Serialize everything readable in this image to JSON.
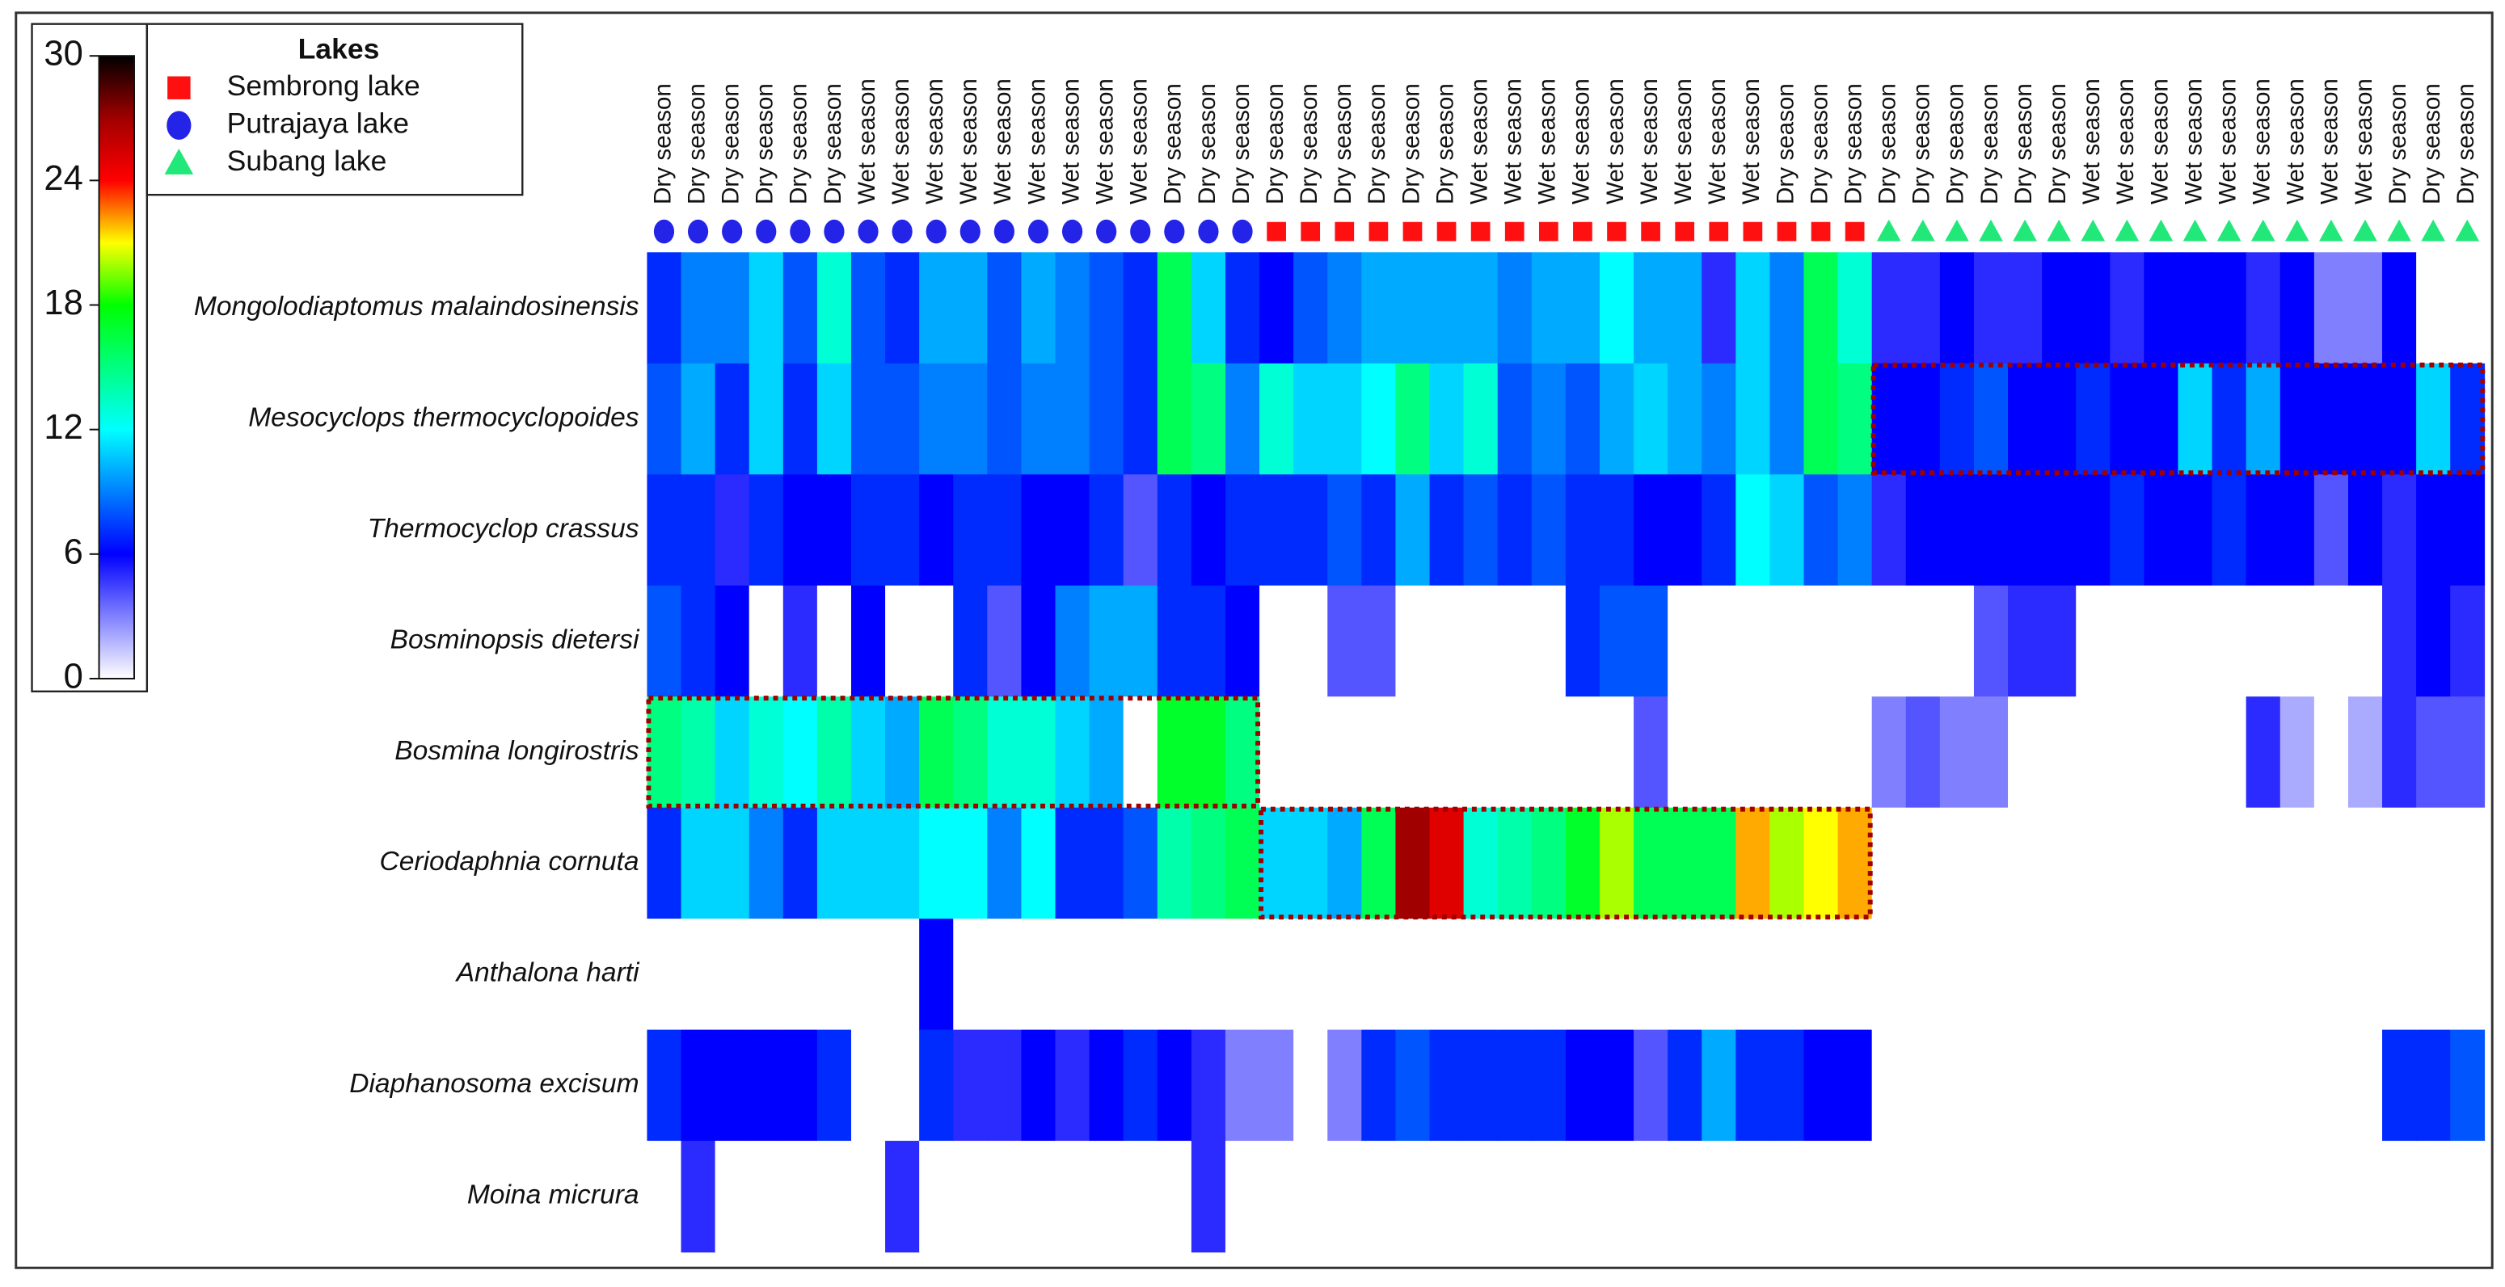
{
  "chart_data": {
    "type": "heatmap",
    "y_categories": [
      "Mongolodiaptomus malaindosinensis",
      "Mesocyclops thermocyclopoides",
      "Thermocyclop crassus",
      "Bosminopsis dietersi",
      "Bosmina longirostris",
      "Ceriodaphnia cornuta",
      "Anthalona harti",
      "Diaphanosoma excisum",
      "Moina micrura"
    ],
    "legend": {
      "title": "Lakes"
    },
    "groups": [
      {
        "name": "Putrajaya lake",
        "color": "#2424e8",
        "marker": "circle",
        "columns": [
          "Dry season",
          "Dry season",
          "Dry season",
          "Dry season",
          "Dry season",
          "Dry season",
          "Wet season",
          "Wet season",
          "Wet season",
          "Wet season",
          "Wet season",
          "Wet season",
          "Wet season",
          "Wet season",
          "Wet season",
          "Dry season",
          "Dry season",
          "Dry season"
        ],
        "values": [
          [
            7,
            9,
            9,
            11,
            8,
            13,
            8,
            7,
            10,
            10,
            8,
            10,
            9,
            8,
            7,
            16,
            11,
            7
          ],
          [
            8,
            10,
            7,
            11,
            7,
            11,
            8,
            8,
            9,
            9,
            8,
            9,
            9,
            8,
            7,
            16,
            15,
            9
          ],
          [
            7,
            7,
            5,
            7,
            6,
            6,
            7,
            7,
            6,
            7,
            7,
            6,
            6,
            7,
            4,
            7,
            6,
            7
          ],
          [
            8,
            7,
            6,
            0,
            5,
            0,
            6,
            0,
            0,
            7,
            4,
            6,
            9,
            10,
            10,
            7,
            7,
            6
          ],
          [
            15,
            14,
            11,
            13,
            12,
            14,
            11,
            10,
            16,
            15,
            13,
            13,
            11,
            10,
            0,
            17,
            17,
            15
          ],
          [
            7,
            11,
            11,
            9,
            7,
            11,
            11,
            11,
            12,
            12,
            9,
            12,
            7,
            7,
            8,
            14,
            15,
            16
          ],
          [
            0,
            0,
            0,
            0,
            0,
            0,
            0,
            0,
            6,
            0,
            0,
            0,
            0,
            0,
            0,
            0,
            0,
            0
          ],
          [
            7,
            6,
            6,
            6,
            6,
            7,
            0,
            0,
            7,
            5,
            5,
            6,
            5,
            6,
            7,
            6,
            5,
            3
          ],
          [
            0,
            5,
            0,
            0,
            0,
            0,
            0,
            5,
            0,
            0,
            0,
            0,
            0,
            0,
            0,
            0,
            5,
            0
          ]
        ]
      },
      {
        "name": "Sembrong lake",
        "color": "#ff1010",
        "marker": "square",
        "columns": [
          "Dry season",
          "Dry season",
          "Dry season",
          "Dry season",
          "Dry season",
          "Dry season",
          "Wet season",
          "Wet season",
          "Wet season",
          "Wet season",
          "Wet season",
          "Wet season",
          "Wet season",
          "Wet season",
          "Wet season",
          "Dry season",
          "Dry season",
          "Dry season"
        ],
        "values": [
          [
            6,
            8,
            9,
            10,
            10,
            10,
            10,
            9,
            10,
            10,
            12,
            10,
            10,
            5,
            11,
            9,
            16,
            13
          ],
          [
            13,
            11,
            11,
            12,
            15,
            11,
            13,
            8,
            9,
            8,
            10,
            11,
            10,
            9,
            11,
            9,
            16,
            15
          ],
          [
            7,
            7,
            8,
            7,
            10,
            7,
            8,
            7,
            8,
            7,
            7,
            6,
            6,
            7,
            12,
            11,
            8,
            9
          ],
          [
            0,
            0,
            4,
            4,
            0,
            0,
            0,
            0,
            0,
            7,
            8,
            8,
            0,
            0,
            0,
            0,
            0,
            0
          ],
          [
            0,
            0,
            0,
            0,
            0,
            0,
            0,
            0,
            0,
            0,
            0,
            4,
            0,
            0,
            0,
            0,
            0,
            0
          ],
          [
            11,
            11,
            10,
            16,
            27,
            25,
            13,
            14,
            15,
            17,
            20,
            16,
            16,
            16,
            22,
            20,
            21,
            22
          ],
          [
            0,
            0,
            0,
            0,
            0,
            0,
            0,
            0,
            0,
            0,
            0,
            0,
            0,
            0,
            0,
            0,
            0,
            0
          ],
          [
            3,
            0,
            3,
            7,
            8,
            7,
            7,
            7,
            7,
            6,
            6,
            4,
            7,
            10,
            7,
            7,
            6,
            6
          ],
          [
            0,
            0,
            0,
            0,
            0,
            0,
            0,
            0,
            0,
            0,
            0,
            0,
            0,
            0,
            0,
            0,
            0,
            0
          ]
        ]
      },
      {
        "name": "Subang lake",
        "color": "#22e87a",
        "marker": "triangle",
        "columns": [
          "Dry season",
          "Dry season",
          "Dry season",
          "Dry season",
          "Dry season",
          "Dry season",
          "Wet season",
          "Wet season",
          "Wet season",
          "Wet season",
          "Wet season",
          "Wet season",
          "Wet season",
          "Wet season",
          "Wet season",
          "Dry season",
          "Dry season",
          "Dry season"
        ],
        "values": [
          [
            5,
            5,
            6,
            5,
            5,
            6,
            6,
            5,
            6,
            6,
            6,
            5,
            6,
            3,
            3,
            6,
            0,
            0
          ],
          [
            6,
            6,
            7,
            8,
            6,
            6,
            7,
            6,
            6,
            11,
            7,
            10,
            6,
            6,
            6,
            6,
            11,
            7
          ],
          [
            5,
            6,
            6,
            6,
            6,
            6,
            6,
            7,
            6,
            6,
            7,
            6,
            6,
            4,
            6,
            5,
            6,
            6
          ],
          [
            0,
            0,
            0,
            4,
            5,
            5,
            0,
            0,
            0,
            0,
            0,
            0,
            0,
            0,
            0,
            5,
            6,
            5
          ],
          [
            3,
            4,
            3,
            3,
            0,
            0,
            0,
            0,
            0,
            0,
            0,
            5,
            2,
            0,
            2,
            5,
            4,
            4
          ],
          [
            0,
            0,
            0,
            0,
            0,
            0,
            0,
            0,
            0,
            0,
            0,
            0,
            0,
            0,
            0,
            0,
            0,
            0
          ],
          [
            0,
            0,
            0,
            0,
            0,
            0,
            0,
            0,
            0,
            0,
            0,
            0,
            0,
            0,
            0,
            0,
            0,
            0
          ],
          [
            0,
            0,
            0,
            0,
            0,
            0,
            0,
            0,
            0,
            0,
            0,
            0,
            0,
            0,
            0,
            7,
            7,
            8
          ],
          [
            0,
            0,
            0,
            0,
            0,
            0,
            0,
            0,
            0,
            0,
            0,
            0,
            0,
            0,
            0,
            0,
            0,
            0
          ]
        ]
      }
    ],
    "colorbar": {
      "zlim": [
        0,
        30
      ],
      "ticks": [
        0,
        6,
        12,
        18,
        24,
        30
      ],
      "colors": [
        "#ffffff",
        "#8080ff",
        "#0000ff",
        "#0080ff",
        "#00ffff",
        "#00ff80",
        "#00ff00",
        "#ffff00",
        "#ff0000",
        "#a00000",
        "#000000"
      ]
    }
  }
}
